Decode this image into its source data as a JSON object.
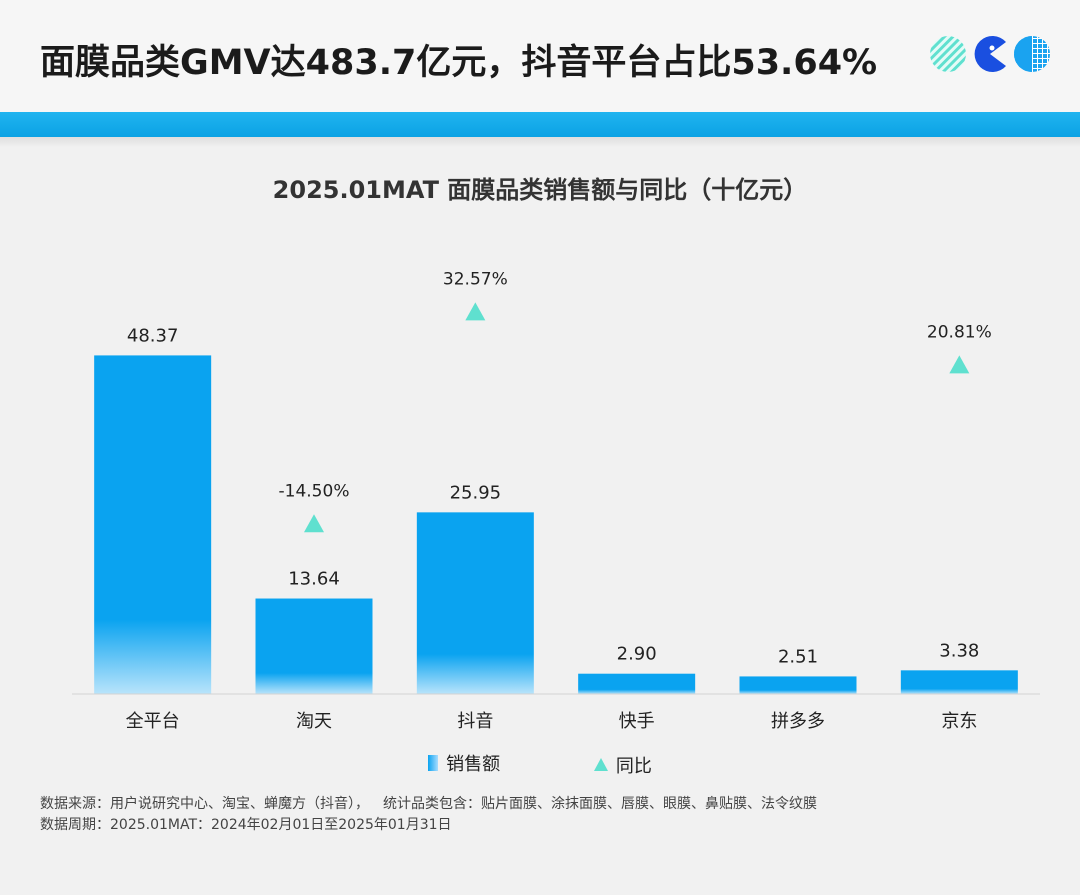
{
  "headline": "面膜品类GMV达483.7亿元，抖音平台占比53.64%",
  "colors": {
    "bar_top": "#0aa3f0",
    "bar_bottom": "#b9e4fb",
    "triangle": "#5fe0cf",
    "stripe": "#1aaeee"
  },
  "chart_data": {
    "type": "bar",
    "title": "2025.01MAT 面膜品类销售额与同比（十亿元）",
    "categories": [
      "全平台",
      "淘天",
      "抖音",
      "快手",
      "拼多多",
      "京东"
    ],
    "series": [
      {
        "name": "销售额",
        "type": "bar",
        "values": [
          48.37,
          13.64,
          25.95,
          2.9,
          2.51,
          3.38
        ],
        "labels": [
          "48.37",
          "13.64",
          "25.95",
          "2.90",
          "2.51",
          "3.38"
        ]
      },
      {
        "name": "同比",
        "type": "scatter",
        "marker": "triangle",
        "values": [
          null,
          -14.5,
          32.57,
          null,
          null,
          20.81
        ],
        "labels": [
          null,
          "-14.50%",
          "32.57%",
          null,
          null,
          "20.81%"
        ]
      }
    ],
    "ylim": [
      0,
      50
    ],
    "y2lim": [
      -85,
      55
    ],
    "legend": "bottom-center",
    "grid": false
  },
  "notes": {
    "source": "数据来源：用户说研究中心、淘宝、蝉魔方（抖音），",
    "scope": "统计品类包含：贴片面膜、涂抹面膜、唇膜、眼膜、鼻贴膜、法令纹膜",
    "period": "数据周期：2025.01MAT：2024年02月01日至2025年01月31日"
  }
}
